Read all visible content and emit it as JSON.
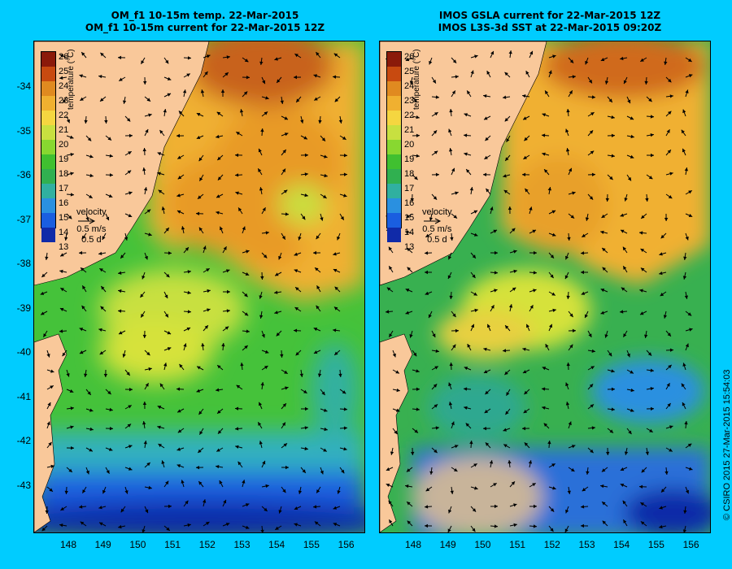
{
  "left_panel": {
    "title_line1": "OM_f1 10-15m temp. 22-Mar-2015",
    "title_line2": "OM_f1 10-15m current for 22-Mar-2015 12Z"
  },
  "right_panel": {
    "title_line1": "IMOS GSLA current for 22-Mar-2015 12Z",
    "title_line2": "IMOS L3S-3d SST at 22-Mar-2015 09:20Z"
  },
  "colorbar": {
    "ticks": [
      "26",
      "25",
      "24",
      "23",
      "22",
      "21",
      "20",
      "19",
      "18",
      "17",
      "16",
      "15",
      "14",
      "13"
    ],
    "unit_label": "temperature (°C)",
    "colors": [
      "#8b1a0a",
      "#c84a10",
      "#e08a20",
      "#f0b030",
      "#f5d640",
      "#c8e040",
      "#88d830",
      "#40c030",
      "#30b050",
      "#30b0a0",
      "#2a90e0",
      "#1a5ee0",
      "#102aa8"
    ]
  },
  "velocity_legend": {
    "label": "velocity",
    "speed": "0.5 m/s",
    "duration": "0.5 d"
  },
  "y_axis_labels": [
    "-34",
    "-35",
    "-36",
    "-37",
    "-38",
    "-39",
    "-40",
    "-41",
    "-42",
    "-43"
  ],
  "x_axis_labels": [
    "148",
    "149",
    "150",
    "151",
    "152",
    "153",
    "154",
    "155",
    "156"
  ],
  "credit": "© CSIRO 2015   27-Mar-2015 15:54:03",
  "colors": {
    "background": "#00ccff",
    "land": "#f9c89a",
    "arrow": "#000000"
  }
}
